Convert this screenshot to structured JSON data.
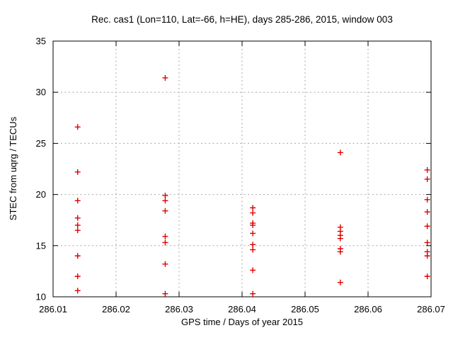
{
  "window": {
    "title": "Rec. cas1 (Lon=110, Lat=-66, h=HE), days 285-286, 2015, window 003"
  },
  "colors": {
    "background": "#ffffff",
    "axis": "#000000",
    "grid": "#a8a8a8",
    "marker": "#e00000",
    "text": "#000000"
  },
  "chart_data": {
    "type": "scatter",
    "title": "Rec. cas1 (Lon=110, Lat=-66, h=HE), days 285-286, 2015, window 003",
    "xlabel": "GPS time / Days of year 2015",
    "ylabel": "STEC from uqrg / TECUs",
    "xlim": [
      286.01,
      286.07
    ],
    "ylim": [
      10,
      35
    ],
    "xticks": {
      "values": [
        286.01,
        286.02,
        286.03,
        286.04,
        286.05,
        286.06,
        286.07
      ],
      "labels": [
        "286.01",
        "286.02",
        "286.03",
        "286.04",
        "286.05",
        "286.06",
        "286.07"
      ]
    },
    "yticks": {
      "values": [
        10,
        15,
        20,
        25,
        30,
        35
      ],
      "labels": [
        "10",
        "15",
        "20",
        "25",
        "30",
        "35"
      ]
    },
    "grid": "dotted",
    "legend": "none",
    "marker": {
      "shape": "plus",
      "color": "#e00000",
      "size": 8
    },
    "series": [
      {
        "name": "STEC from uqrg",
        "points": [
          [
            286.0139,
            26.6
          ],
          [
            286.0139,
            22.2
          ],
          [
            286.0139,
            19.4
          ],
          [
            286.0139,
            17.7
          ],
          [
            286.0139,
            17.0
          ],
          [
            286.0139,
            16.5
          ],
          [
            286.0139,
            14.0
          ],
          [
            286.0139,
            12.0
          ],
          [
            286.0139,
            10.6
          ],
          [
            286.0278,
            31.4
          ],
          [
            286.0278,
            19.9
          ],
          [
            286.0278,
            19.4
          ],
          [
            286.0278,
            18.4
          ],
          [
            286.0278,
            15.9
          ],
          [
            286.0278,
            15.3
          ],
          [
            286.0278,
            13.2
          ],
          [
            286.0278,
            10.3
          ],
          [
            286.0417,
            18.7
          ],
          [
            286.0417,
            18.2
          ],
          [
            286.0417,
            17.2
          ],
          [
            286.0417,
            17.0
          ],
          [
            286.0417,
            16.2
          ],
          [
            286.0417,
            15.1
          ],
          [
            286.0417,
            14.6
          ],
          [
            286.0417,
            12.6
          ],
          [
            286.0417,
            10.3
          ],
          [
            286.0556,
            24.1
          ],
          [
            286.0556,
            16.8
          ],
          [
            286.0556,
            16.4
          ],
          [
            286.0556,
            16.0
          ],
          [
            286.0556,
            15.7
          ],
          [
            286.0556,
            14.7
          ],
          [
            286.0556,
            14.4
          ],
          [
            286.0556,
            11.4
          ],
          [
            286.0694,
            22.4
          ],
          [
            286.0694,
            21.5
          ],
          [
            286.0694,
            19.5
          ],
          [
            286.0694,
            18.3
          ],
          [
            286.0694,
            16.9
          ],
          [
            286.0694,
            15.3
          ],
          [
            286.0694,
            14.4
          ],
          [
            286.0694,
            14.0
          ],
          [
            286.0694,
            12.0
          ]
        ]
      }
    ]
  }
}
